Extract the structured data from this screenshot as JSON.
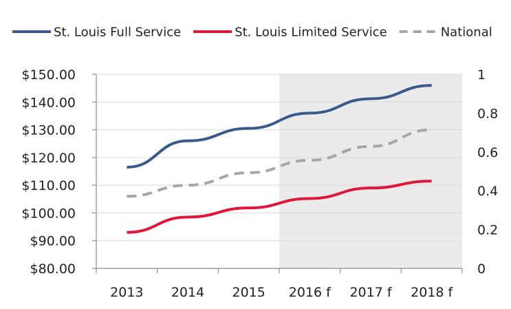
{
  "chart_data": {
    "type": "line",
    "categories": [
      "2013",
      "2014",
      "2015",
      "2016 f",
      "2017 f",
      "2018 f"
    ],
    "series": [
      {
        "name": "St. Louis Full Service",
        "axis": "left",
        "color": "#3a5a8c",
        "dash": "solid",
        "values": [
          116.5,
          126.0,
          130.5,
          136.0,
          141.2,
          146.0
        ]
      },
      {
        "name": "St. Louis Limited Service",
        "axis": "left",
        "color": "#e0163a",
        "dash": "solid",
        "values": [
          93.0,
          98.5,
          101.8,
          105.2,
          109.0,
          111.5
        ]
      },
      {
        "name": "National",
        "axis": "left",
        "color": "#a6a6a6",
        "dash": "dashed",
        "values": [
          106.0,
          110.0,
          114.5,
          119.0,
          124.0,
          130.0
        ]
      }
    ],
    "y_left": {
      "min": 80,
      "max": 150,
      "step": 10,
      "tick_labels": [
        "$80.00",
        "$90.00",
        "$100.00",
        "$110.00",
        "$120.00",
        "$130.00",
        "$140.00",
        "$150.00"
      ]
    },
    "y_right": {
      "min": 0,
      "max": 1,
      "step": 0.2,
      "tick_labels": [
        "0",
        "0.2",
        "0.4",
        "0.6",
        "0.8",
        "1"
      ]
    },
    "forecast_shading": {
      "from_category": "2016 f",
      "color": "#ebebeb"
    },
    "grid": true,
    "legend_position": "top"
  }
}
